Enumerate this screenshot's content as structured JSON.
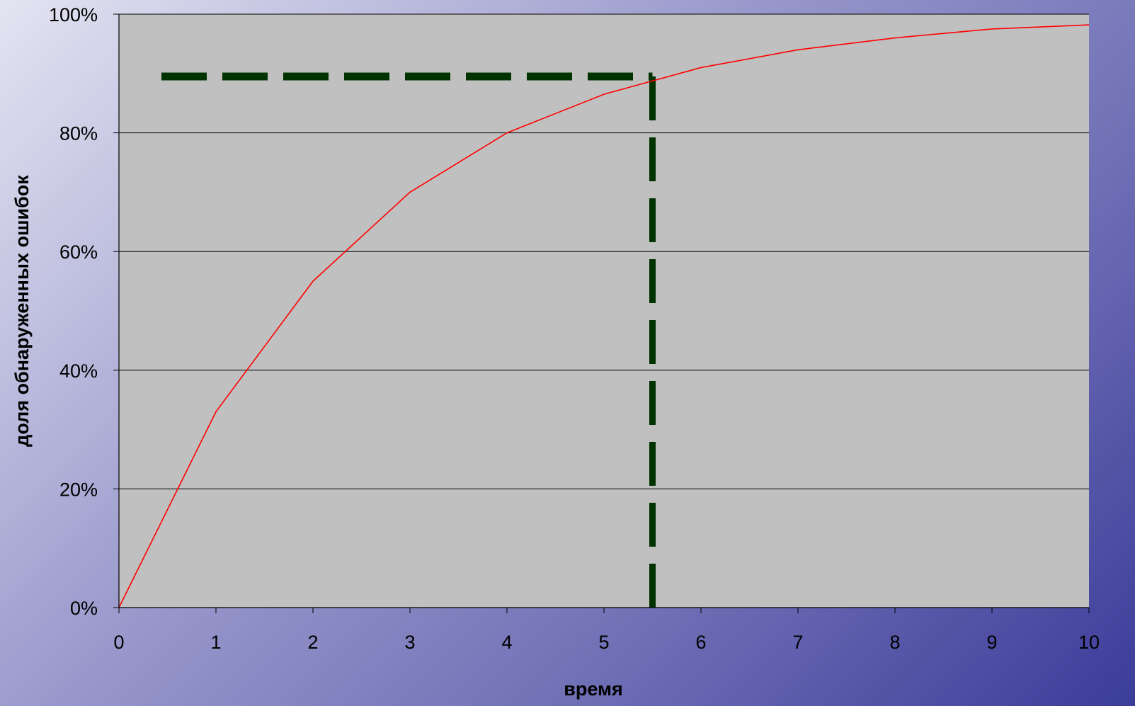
{
  "chart_data": {
    "type": "line",
    "title": "",
    "xlabel": "время",
    "ylabel": "доля обнаруженных ошибок",
    "xlim": [
      0,
      10
    ],
    "ylim": [
      0,
      100
    ],
    "x_ticks": [
      "0",
      "1",
      "2",
      "3",
      "4",
      "5",
      "6",
      "7",
      "8",
      "9",
      "10"
    ],
    "y_ticks": [
      "0%",
      "20%",
      "40%",
      "60%",
      "80%",
      "100%"
    ],
    "grid": "horizontal",
    "legend": "none",
    "series": [
      {
        "x": [
          0,
          1,
          2,
          3,
          4,
          5,
          6,
          7,
          8,
          9,
          10
        ],
        "y": [
          0,
          33,
          55,
          70,
          80,
          86.5,
          91,
          94,
          96,
          97.5,
          98.2
        ],
        "color": "#ff0000"
      }
    ],
    "reference_lines": {
      "x": 5.5,
      "y": 89.5,
      "color": "#003300",
      "style": "dashed"
    },
    "plot_background": "#c0c0c0",
    "gridline_color": "#000000"
  }
}
